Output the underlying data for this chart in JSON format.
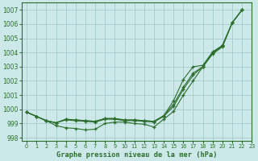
{
  "title": "Graphe pression niveau de la mer (hPa)",
  "bg_color": "#cce8e8",
  "grid_color": "#aacfcf",
  "line_color": "#2d6e2d",
  "xlim": [
    -0.5,
    23
  ],
  "ylim": [
    997.8,
    1007.5
  ],
  "yticks": [
    998,
    999,
    1000,
    1001,
    1002,
    1003,
    1004,
    1005,
    1006,
    1007
  ],
  "xticks": [
    0,
    1,
    2,
    3,
    4,
    5,
    6,
    7,
    8,
    9,
    10,
    11,
    12,
    13,
    14,
    15,
    16,
    17,
    18,
    19,
    20,
    21,
    22,
    23
  ],
  "series": [
    [
      999.8,
      999.5,
      999.2,
      998.85,
      998.7,
      998.65,
      998.55,
      998.6,
      999.0,
      999.1,
      999.1,
      999.0,
      998.95,
      998.75,
      999.3,
      999.85,
      1001.0,
      1002.0,
      1003.0,
      1003.9,
      1004.4,
      1006.1,
      1007.0
    ],
    [
      999.8,
      999.5,
      999.2,
      999.05,
      999.25,
      999.2,
      999.15,
      999.1,
      999.3,
      999.3,
      999.2,
      999.2,
      999.15,
      999.1,
      999.5,
      1000.2,
      1001.4,
      1002.4,
      1003.0,
      1003.95,
      1004.45,
      1006.1,
      1007.0
    ],
    [
      999.8,
      999.5,
      999.2,
      999.05,
      999.3,
      999.25,
      999.2,
      999.15,
      999.35,
      999.35,
      999.25,
      999.25,
      999.2,
      999.15,
      999.55,
      1000.35,
      1001.55,
      1002.55,
      1003.0,
      1004.0,
      1004.5,
      1006.1,
      1007.0
    ],
    [
      999.8,
      999.5,
      999.2,
      999.05,
      999.3,
      999.25,
      999.2,
      999.15,
      999.35,
      999.35,
      999.25,
      999.25,
      999.2,
      999.15,
      999.55,
      1000.6,
      1002.1,
      1003.0,
      1003.1,
      1004.05,
      1004.5,
      1006.1,
      1007.0
    ]
  ]
}
